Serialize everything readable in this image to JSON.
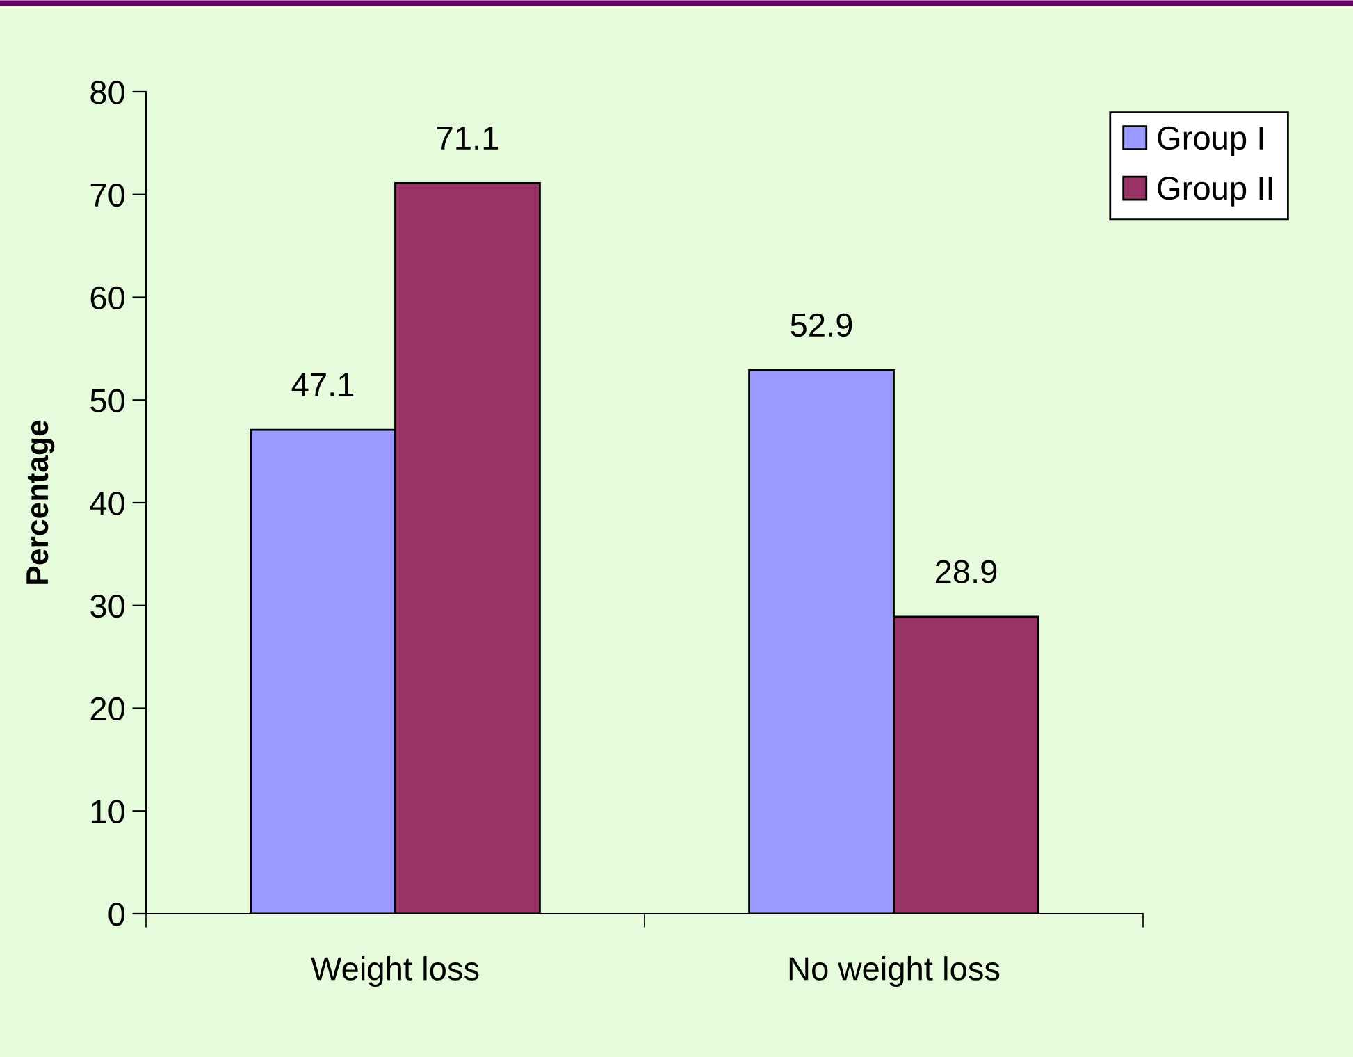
{
  "chart_data": {
    "type": "bar",
    "ylabel": "Percentage",
    "categories": [
      "Weight loss",
      "No weight loss"
    ],
    "series": [
      {
        "name": "Group I",
        "color": "#9999ff",
        "values": [
          47.1,
          52.9
        ]
      },
      {
        "name": "Group II",
        "color": "#993366",
        "values": [
          71.1,
          28.9
        ]
      }
    ],
    "ylim": [
      0,
      80
    ],
    "yticks": [
      0,
      10,
      20,
      30,
      40,
      50,
      60,
      70,
      80
    ],
    "data_labels": true,
    "grid": false,
    "legend": "top right"
  }
}
